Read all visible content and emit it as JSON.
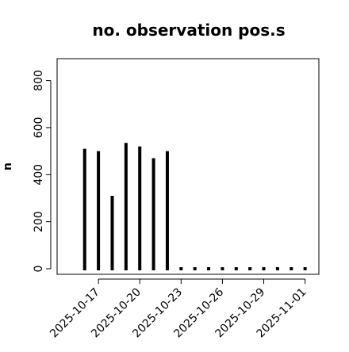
{
  "chart_data": {
    "type": "bar",
    "title": "no. observation pos.s",
    "ylabel": "n",
    "xlabel": "",
    "ylim": [
      0,
      920
    ],
    "yticks": [
      0,
      200,
      400,
      600,
      800
    ],
    "ytick_labels": [
      "0",
      "200",
      "400",
      "600",
      "800"
    ],
    "grid": false,
    "legend": "none",
    "x_axis": "date",
    "xlim": [
      "2025-10-14",
      "2025-11-02"
    ],
    "dates": [
      "2025-10-16",
      "2025-10-17",
      "2025-10-18",
      "2025-10-19",
      "2025-10-20",
      "2025-10-21",
      "2025-10-22",
      "2025-10-23",
      "2025-10-24",
      "2025-10-25",
      "2025-10-26",
      "2025-10-27",
      "2025-10-28",
      "2025-10-29",
      "2025-10-30",
      "2025-10-31",
      "2025-11-01"
    ],
    "values": [
      510,
      500,
      310,
      535,
      520,
      470,
      500,
      0,
      0,
      0,
      0,
      0,
      0,
      0,
      0,
      0,
      0
    ],
    "xticks": [
      "2025-10-17",
      "2025-10-20",
      "2025-10-23",
      "2025-10-26",
      "2025-10-29",
      "2025-11-01"
    ],
    "xtick_labels": [
      "2025-10-17",
      "2025-10-20",
      "2025-10-23",
      "2025-10-26",
      "2025-10-29",
      "2025-11-01"
    ],
    "highlighted_xtick": "2025-10-23",
    "colors": {
      "bars": "#000000",
      "axis": "#000000",
      "tick_label": "#000000",
      "highlight_tick_label": "#228b22"
    }
  }
}
